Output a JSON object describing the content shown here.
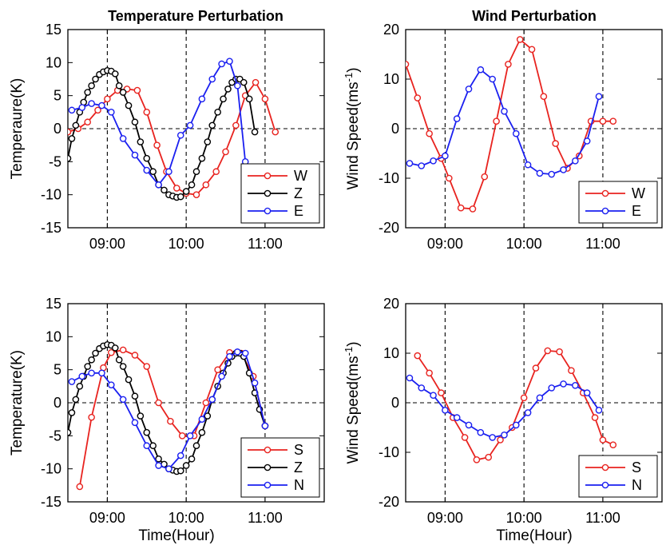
{
  "chart_data": [
    {
      "type": "line",
      "title": "Temperature Perturbation",
      "xlabel": "",
      "ylabel": "Temperaure(K)",
      "ylabel_superscript": "",
      "ylabel_suffix": "",
      "xlim": [
        8.5,
        11.75
      ],
      "ylim": [
        -15,
        15
      ],
      "yticks": [
        -15,
        -10,
        -5,
        0,
        5,
        10,
        15
      ],
      "xticks": [
        9,
        10,
        11
      ],
      "xtick_labels": [
        "09:00",
        "10:00",
        "11:00"
      ],
      "vlines": [
        9,
        10,
        11
      ],
      "hline": 0,
      "grid": false,
      "legend_position": "bottom-right",
      "series": [
        {
          "name": "W",
          "color": "#e8231f",
          "x": [
            8.5,
            8.63,
            8.75,
            8.88,
            9.0,
            9.13,
            9.25,
            9.38,
            9.5,
            9.63,
            9.75,
            9.88,
            10.0,
            10.13,
            10.25,
            10.38,
            10.5,
            10.63,
            10.75,
            10.88,
            11.0,
            11.13
          ],
          "y": [
            -0.5,
            0.0,
            1.0,
            2.8,
            4.5,
            5.8,
            6.0,
            5.8,
            2.5,
            -2.5,
            -6.5,
            -9.0,
            -9.8,
            -10.0,
            -8.5,
            -6.5,
            -3.5,
            0.5,
            5.0,
            7.0,
            4.5,
            -0.5
          ]
        },
        {
          "name": "Z",
          "color": "#000000",
          "x": [
            8.5,
            8.55,
            8.6,
            8.65,
            8.7,
            8.75,
            8.8,
            8.85,
            8.9,
            8.95,
            9.0,
            9.05,
            9.1,
            9.15,
            9.2,
            9.27,
            9.35,
            9.42,
            9.5,
            9.58,
            9.65,
            9.72,
            9.78,
            9.83,
            9.88,
            9.93,
            10.0,
            10.07,
            10.13,
            10.2,
            10.27,
            10.33,
            10.4,
            10.47,
            10.53,
            10.58,
            10.63,
            10.68,
            10.73,
            10.8,
            10.87
          ],
          "y": [
            -4.5,
            -1.5,
            0.5,
            2.5,
            4.0,
            5.5,
            6.5,
            7.5,
            8.2,
            8.6,
            8.8,
            8.7,
            8.3,
            6.5,
            5.5,
            3.5,
            1.0,
            -2.0,
            -4.5,
            -6.5,
            -8.5,
            -9.3,
            -10.0,
            -10.2,
            -10.4,
            -10.3,
            -9.5,
            -8.5,
            -6.5,
            -4.5,
            -2.0,
            0.5,
            2.5,
            4.5,
            6.0,
            7.0,
            7.5,
            7.5,
            7.0,
            4.5,
            -0.5
          ]
        },
        {
          "name": "E",
          "color": "#1a1ff0",
          "x": [
            8.55,
            8.68,
            8.8,
            8.93,
            9.05,
            9.2,
            9.35,
            9.5,
            9.65,
            9.78,
            9.93,
            10.05,
            10.2,
            10.33,
            10.45,
            10.55,
            10.65,
            10.75
          ],
          "y": [
            2.8,
            3.2,
            3.8,
            3.5,
            2.5,
            -1.5,
            -4.0,
            -6.3,
            -8.5,
            -6.5,
            -1.0,
            0.5,
            4.5,
            7.5,
            9.8,
            10.2,
            6.5,
            -5.0
          ]
        }
      ]
    },
    {
      "type": "line",
      "title": "Wind Perturbation",
      "xlabel": "",
      "ylabel": "Wind Speed(ms",
      "ylabel_superscript": "-1",
      "ylabel_suffix": ")",
      "xlim": [
        8.5,
        11.75
      ],
      "ylim": [
        -20,
        20
      ],
      "yticks": [
        -20,
        -10,
        0,
        10,
        20
      ],
      "xticks": [
        9,
        10,
        11
      ],
      "xtick_labels": [
        "09:00",
        "10:00",
        "11:00"
      ],
      "vlines": [
        9,
        10,
        11
      ],
      "hline": 0,
      "grid": false,
      "legend_position": "bottom-right",
      "series": [
        {
          "name": "W",
          "color": "#e8231f",
          "x": [
            8.5,
            8.65,
            8.8,
            8.95,
            9.05,
            9.2,
            9.35,
            9.5,
            9.65,
            9.8,
            9.95,
            10.1,
            10.25,
            10.4,
            10.55,
            10.7,
            10.85,
            11.0,
            11.13
          ],
          "y": [
            13.0,
            6.2,
            -1.0,
            -6.0,
            -10.0,
            -16.0,
            -16.2,
            -9.7,
            1.5,
            13.0,
            18.0,
            16.0,
            6.5,
            -3.0,
            -8.0,
            -5.5,
            1.5,
            1.5,
            1.5
          ]
        },
        {
          "name": "E",
          "color": "#1a1ff0",
          "x": [
            8.55,
            8.7,
            8.85,
            9.0,
            9.15,
            9.3,
            9.45,
            9.6,
            9.75,
            9.9,
            10.05,
            10.2,
            10.35,
            10.5,
            10.65,
            10.8,
            10.95
          ],
          "y": [
            -7.0,
            -7.5,
            -6.5,
            -5.5,
            2.0,
            8.0,
            11.9,
            10.0,
            3.5,
            -1.0,
            -7.3,
            -9.0,
            -9.2,
            -8.3,
            -6.5,
            -2.5,
            6.5
          ]
        }
      ]
    },
    {
      "type": "line",
      "title": "",
      "xlabel": "Time(Hour)",
      "ylabel": "Temperature(K)",
      "ylabel_superscript": "",
      "ylabel_suffix": "",
      "xlim": [
        8.5,
        11.75
      ],
      "ylim": [
        -15,
        15
      ],
      "yticks": [
        -15,
        -10,
        -5,
        0,
        5,
        10,
        15
      ],
      "xticks": [
        9,
        10,
        11
      ],
      "xtick_labels": [
        "09:00",
        "10:00",
        "11:00"
      ],
      "vlines": [
        9,
        10,
        11
      ],
      "hline": 0,
      "grid": false,
      "legend_position": "bottom-right",
      "series": [
        {
          "name": "S",
          "color": "#e8231f",
          "x": [
            8.65,
            8.8,
            8.95,
            9.05,
            9.2,
            9.35,
            9.5,
            9.65,
            9.8,
            9.95,
            10.1,
            10.25,
            10.4,
            10.55,
            10.7,
            10.85,
            11.0
          ],
          "y": [
            -12.7,
            -2.2,
            5.3,
            7.6,
            8.0,
            7.2,
            5.5,
            0.0,
            -2.8,
            -5.0,
            -5.0,
            0.0,
            5.0,
            7.6,
            7.5,
            4.0,
            -3.5
          ]
        },
        {
          "name": "Z",
          "color": "#000000",
          "x": [
            8.5,
            8.55,
            8.6,
            8.65,
            8.7,
            8.75,
            8.8,
            8.85,
            8.9,
            8.95,
            9.0,
            9.05,
            9.1,
            9.15,
            9.2,
            9.27,
            9.35,
            9.42,
            9.5,
            9.58,
            9.65,
            9.72,
            9.78,
            9.83,
            9.88,
            9.93,
            10.0,
            10.07,
            10.13,
            10.2,
            10.27,
            10.33,
            10.4,
            10.47,
            10.53,
            10.58,
            10.63,
            10.68,
            10.73,
            10.8,
            10.87,
            10.93,
            11.0
          ],
          "y": [
            -4.5,
            -1.5,
            0.5,
            2.5,
            4.0,
            5.5,
            6.5,
            7.5,
            8.2,
            8.6,
            8.8,
            8.7,
            8.3,
            6.5,
            5.5,
            3.5,
            1.0,
            -2.0,
            -4.5,
            -6.5,
            -8.5,
            -9.3,
            -10.0,
            -10.2,
            -10.4,
            -10.3,
            -9.5,
            -8.5,
            -6.5,
            -4.5,
            -2.0,
            0.5,
            2.5,
            4.5,
            6.0,
            7.0,
            7.5,
            7.5,
            7.0,
            4.5,
            1.5,
            -1.0,
            -3.5
          ]
        },
        {
          "name": "N",
          "color": "#1a1ff0",
          "x": [
            8.55,
            8.68,
            8.8,
            8.93,
            9.05,
            9.2,
            9.35,
            9.5,
            9.65,
            9.78,
            9.93,
            10.05,
            10.2,
            10.33,
            10.45,
            10.55,
            10.65,
            10.75,
            10.87,
            11.0
          ],
          "y": [
            3.2,
            4.0,
            4.5,
            4.5,
            2.7,
            0.5,
            -3.0,
            -6.5,
            -9.5,
            -10.0,
            -8.0,
            -5.0,
            -2.5,
            0.5,
            4.0,
            7.0,
            7.7,
            7.5,
            3.0,
            -3.5
          ]
        }
      ]
    },
    {
      "type": "line",
      "title": "",
      "xlabel": "Time(Hour)",
      "ylabel": "Wind Speed(ms",
      "ylabel_superscript": "-1",
      "ylabel_suffix": ")",
      "xlim": [
        8.5,
        11.75
      ],
      "ylim": [
        -20,
        20
      ],
      "yticks": [
        -20,
        -10,
        0,
        10,
        20
      ],
      "xticks": [
        9,
        10,
        11
      ],
      "xtick_labels": [
        "09:00",
        "10:00",
        "11:00"
      ],
      "vlines": [
        9,
        10,
        11
      ],
      "hline": 0,
      "grid": false,
      "legend_position": "bottom-right",
      "series": [
        {
          "name": "S",
          "color": "#e8231f",
          "x": [
            8.65,
            8.8,
            8.95,
            9.1,
            9.25,
            9.4,
            9.55,
            9.7,
            9.85,
            10.0,
            10.15,
            10.3,
            10.45,
            10.6,
            10.75,
            10.9,
            11.0,
            11.13
          ],
          "y": [
            9.5,
            6.0,
            2.0,
            -3.0,
            -7.0,
            -11.5,
            -11.0,
            -7.5,
            -5.0,
            1.0,
            7.0,
            10.5,
            10.3,
            6.5,
            2.0,
            -3.0,
            -7.5,
            -8.5
          ]
        },
        {
          "name": "N",
          "color": "#1a1ff0",
          "x": [
            8.55,
            8.7,
            8.85,
            9.0,
            9.15,
            9.3,
            9.45,
            9.6,
            9.75,
            9.9,
            10.05,
            10.2,
            10.35,
            10.5,
            10.65,
            10.8,
            10.95
          ],
          "y": [
            5.0,
            3.0,
            1.5,
            -1.5,
            -3.0,
            -4.5,
            -6.0,
            -7.0,
            -6.5,
            -4.5,
            -2.0,
            1.0,
            3.0,
            3.8,
            3.5,
            2.0,
            -1.5
          ]
        }
      ]
    }
  ]
}
